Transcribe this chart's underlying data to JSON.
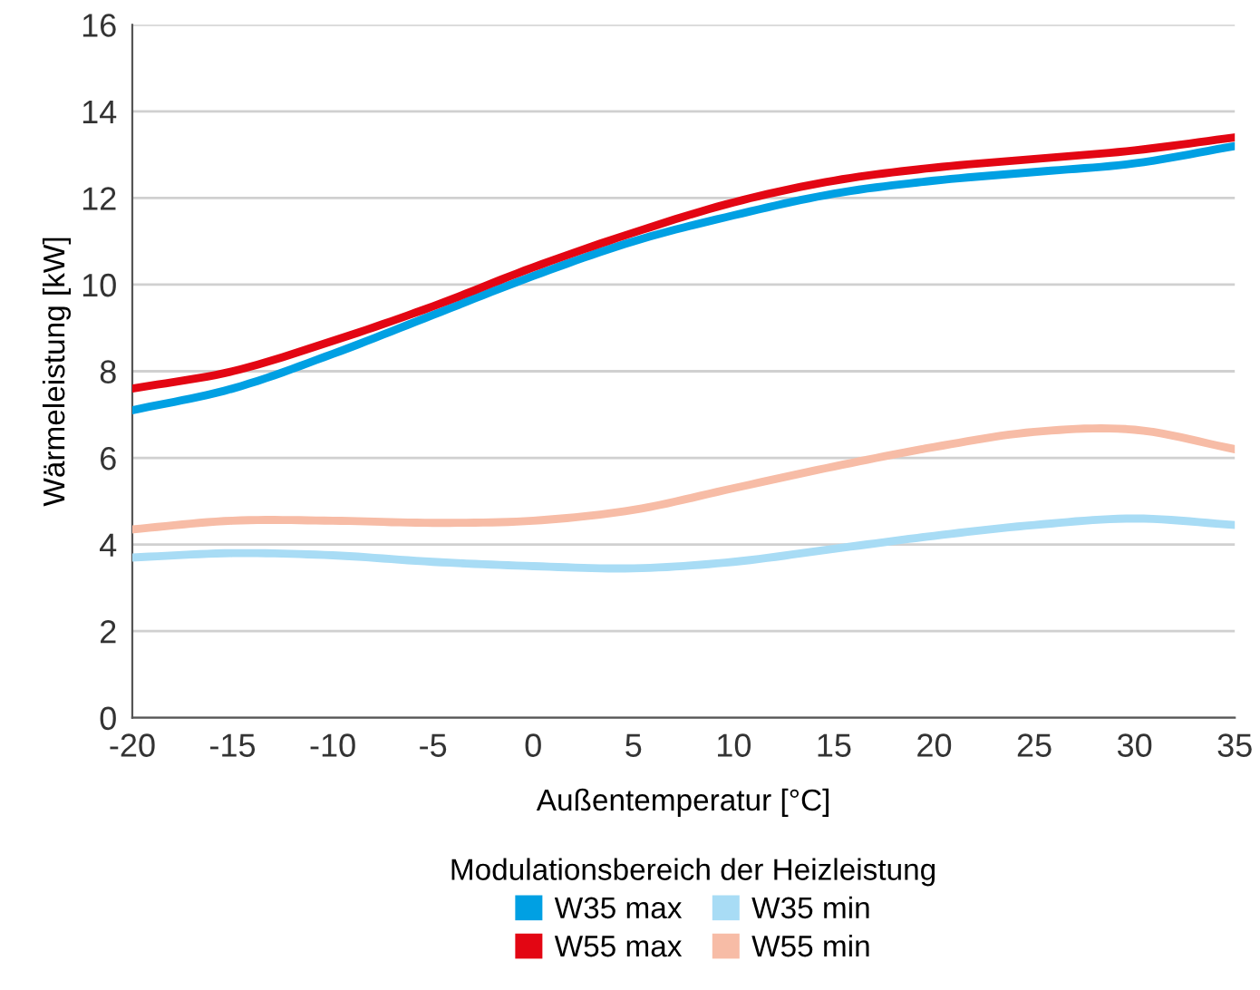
{
  "chart_data": {
    "type": "line",
    "xlabel": "Außentemperatur [°C]",
    "ylabel": "Wärmeleistung [kW]",
    "legend_title": "Modulationsbereich der Heizleistung",
    "x": [
      -20,
      -15,
      -10,
      -5,
      0,
      5,
      10,
      15,
      20,
      25,
      30,
      35
    ],
    "series": [
      {
        "name": "W35 max",
        "color": "#00a0e3",
        "values": [
          7.1,
          7.6,
          8.4,
          9.3,
          10.2,
          11.0,
          11.6,
          12.1,
          12.4,
          12.6,
          12.8,
          13.2
        ]
      },
      {
        "name": "W55 max",
        "color": "#e30613",
        "values": [
          7.6,
          8.0,
          8.7,
          9.5,
          10.4,
          11.2,
          11.9,
          12.4,
          12.7,
          12.9,
          13.1,
          13.4
        ]
      },
      {
        "name": "W35 min",
        "color": "#a8dcf5",
        "values": [
          3.7,
          3.8,
          3.75,
          3.6,
          3.5,
          3.45,
          3.6,
          3.9,
          4.2,
          4.45,
          4.6,
          4.45
        ]
      },
      {
        "name": "W55 min",
        "color": "#f7bca6",
        "values": [
          4.35,
          4.55,
          4.55,
          4.5,
          4.55,
          4.8,
          5.3,
          5.8,
          6.25,
          6.6,
          6.65,
          6.2
        ]
      }
    ],
    "xlim": [
      -20,
      35
    ],
    "xticks": [
      -20,
      -15,
      -10,
      -5,
      0,
      5,
      10,
      15,
      20,
      25,
      30,
      35
    ],
    "ylim": [
      0,
      16
    ],
    "yticks": [
      0,
      2,
      4,
      6,
      8,
      10,
      12,
      14,
      16
    ],
    "grid": "y",
    "legend": "bottom",
    "marker": "none",
    "line_style": "solid"
  }
}
